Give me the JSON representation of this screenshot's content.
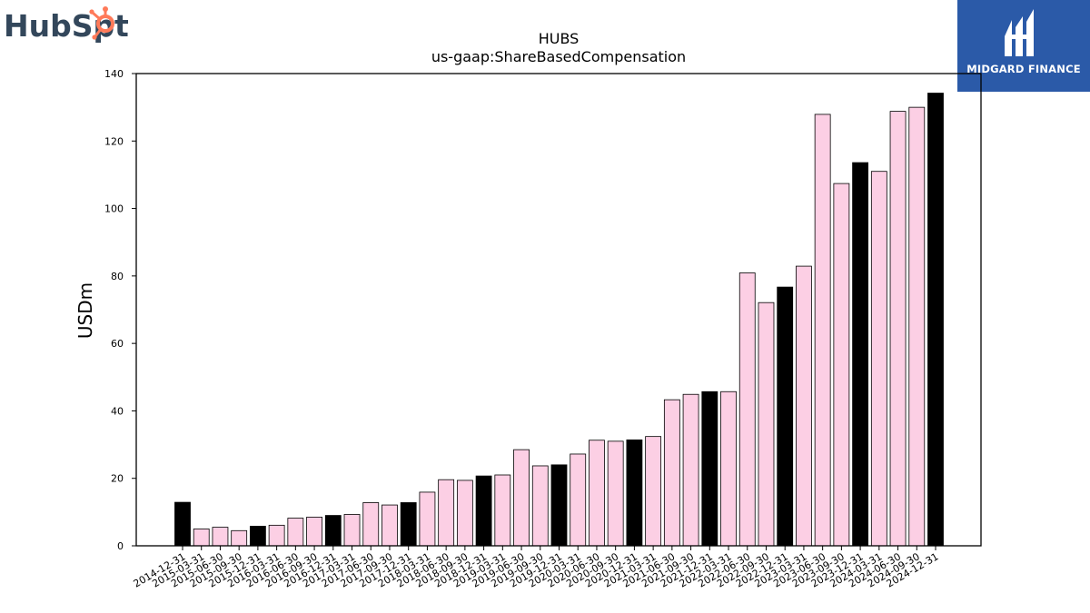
{
  "logos": {
    "left": "HubSpot",
    "right": "MIDGARD FINANCE"
  },
  "colors": {
    "year_end_bar": "#000000",
    "quarter_bar": "#fccfe4",
    "bar_edge": "#000000",
    "hubspot_text": "#33475b",
    "hubspot_accent": "#ff7a59",
    "midgard_bg": "#2b5aa8"
  },
  "chart_data": {
    "type": "bar",
    "title": "HUBS",
    "subtitle": "us-gaap:ShareBasedCompensation",
    "xlabel": "",
    "ylabel": "USDm",
    "ylim": [
      0,
      140
    ],
    "yticks": [
      0,
      20,
      40,
      60,
      80,
      100,
      120,
      140
    ],
    "grid": false,
    "categories": [
      "2014-12-31",
      "2015-03-31",
      "2015-06-30",
      "2015-09-30",
      "2015-12-31",
      "2016-03-31",
      "2016-06-30",
      "2016-09-30",
      "2016-12-31",
      "2017-03-31",
      "2017-06-30",
      "2017-09-30",
      "2017-12-31",
      "2018-03-31",
      "2018-06-30",
      "2018-09-30",
      "2018-12-31",
      "2019-03-31",
      "2019-06-30",
      "2019-09-30",
      "2019-12-31",
      "2020-03-31",
      "2020-06-30",
      "2020-09-30",
      "2020-12-31",
      "2021-03-31",
      "2021-06-30",
      "2021-09-30",
      "2021-12-31",
      "2022-03-31",
      "2022-06-30",
      "2022-09-30",
      "2022-12-31",
      "2023-03-31",
      "2023-06-30",
      "2023-09-30",
      "2023-12-31",
      "2024-03-31",
      "2024-06-30",
      "2024-09-30",
      "2024-12-31"
    ],
    "values": [
      12.9,
      5.0,
      5.5,
      4.5,
      5.8,
      6.1,
      8.2,
      8.5,
      9.0,
      9.3,
      12.8,
      12.1,
      12.8,
      15.9,
      19.6,
      19.4,
      20.7,
      21.0,
      28.5,
      23.7,
      24.0,
      27.2,
      31.3,
      31.0,
      31.4,
      32.4,
      43.3,
      44.9,
      45.7,
      45.7,
      80.9,
      72.1,
      76.7,
      82.9,
      127.9,
      107.4,
      113.6,
      111.0,
      128.8,
      130.0,
      134.2
    ],
    "bar_kind": [
      "year-end",
      "quarter",
      "quarter",
      "quarter",
      "year-end",
      "quarter",
      "quarter",
      "quarter",
      "year-end",
      "quarter",
      "quarter",
      "quarter",
      "year-end",
      "quarter",
      "quarter",
      "quarter",
      "year-end",
      "quarter",
      "quarter",
      "quarter",
      "year-end",
      "quarter",
      "quarter",
      "quarter",
      "year-end",
      "quarter",
      "quarter",
      "quarter",
      "year-end",
      "quarter",
      "quarter",
      "quarter",
      "year-end",
      "quarter",
      "quarter",
      "quarter",
      "year-end",
      "quarter",
      "quarter",
      "quarter",
      "year-end"
    ]
  }
}
